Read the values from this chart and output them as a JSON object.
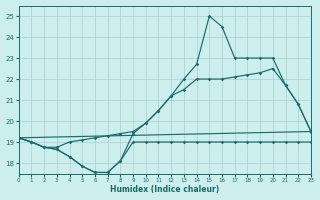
{
  "xlabel": "Humidex (Indice chaleur)",
  "xlim": [
    0,
    23
  ],
  "ylim": [
    17.5,
    25.5
  ],
  "yticks": [
    18,
    19,
    20,
    21,
    22,
    23,
    24,
    25
  ],
  "xticks": [
    0,
    1,
    2,
    3,
    4,
    5,
    6,
    7,
    8,
    9,
    10,
    11,
    12,
    13,
    14,
    15,
    16,
    17,
    18,
    19,
    20,
    21,
    22,
    23
  ],
  "bg": "#cceeed",
  "grid_color": "#aacece",
  "lc": "#1a6b6b",
  "line1_x": [
    0,
    1,
    2,
    3,
    4,
    5,
    6,
    7,
    8,
    9,
    10,
    11,
    12,
    13,
    14,
    15,
    16,
    17,
    18,
    19,
    20,
    21,
    22,
    23
  ],
  "line1_y": [
    19.2,
    19.0,
    18.75,
    18.65,
    18.3,
    17.85,
    17.55,
    17.55,
    18.1,
    19.0,
    19.0,
    19.0,
    19.0,
    19.0,
    19.0,
    19.0,
    19.0,
    19.0,
    19.0,
    19.0,
    19.0,
    19.0,
    19.0,
    19.0
  ],
  "line2_x": [
    0,
    1,
    2,
    3,
    4,
    5,
    6,
    7,
    8,
    9,
    10,
    11,
    12,
    13,
    14,
    15,
    16,
    17,
    18,
    19,
    20,
    21,
    22,
    23
  ],
  "line2_y": [
    19.2,
    19.0,
    18.75,
    18.75,
    19.0,
    19.1,
    19.2,
    19.3,
    19.4,
    19.5,
    19.9,
    20.5,
    21.2,
    21.5,
    22.0,
    22.0,
    22.0,
    22.1,
    22.2,
    22.3,
    22.5,
    21.7,
    20.8,
    19.5
  ],
  "line3_x": [
    0,
    1,
    2,
    3,
    4,
    5,
    6,
    7,
    8,
    9,
    10,
    11,
    12,
    13,
    14,
    15,
    16,
    17,
    18,
    19,
    20,
    21,
    22,
    23
  ],
  "line3_y": [
    19.2,
    19.0,
    18.75,
    18.65,
    18.3,
    17.85,
    17.55,
    17.55,
    18.1,
    19.4,
    19.9,
    20.5,
    21.2,
    22.0,
    22.7,
    25.0,
    24.5,
    23.0,
    23.0,
    23.0,
    23.0,
    21.7,
    20.8,
    19.5
  ],
  "line4_x": [
    0,
    23
  ],
  "line4_y": [
    19.2,
    19.5
  ]
}
